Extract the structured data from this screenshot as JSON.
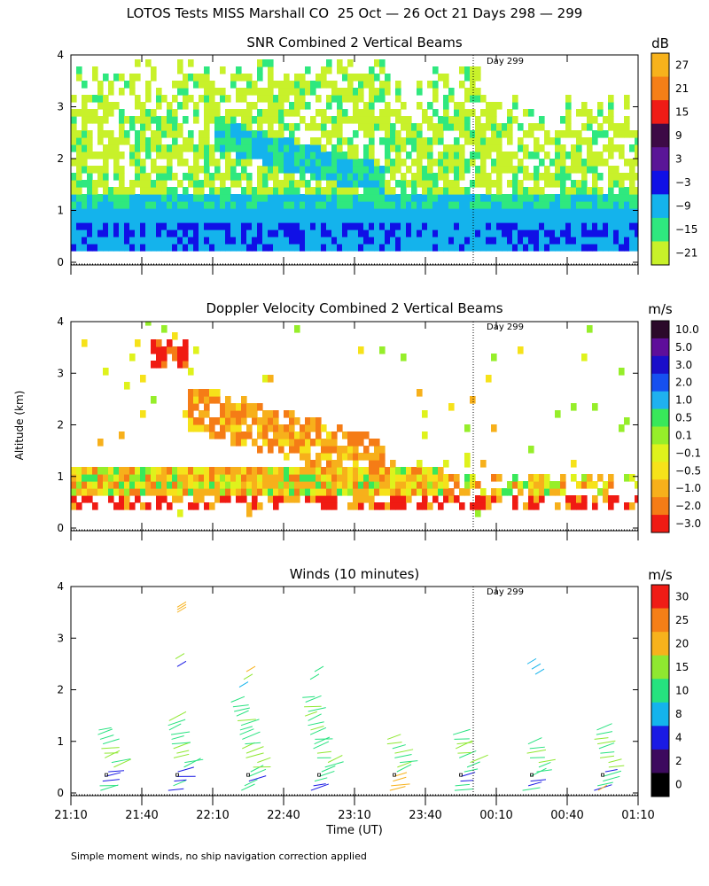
{
  "figure_title": "LOTOS Tests MISS Marshall CO  25 Oct — 26 Oct 21 Days 298 — 299",
  "y_axis_label": "Altitude (km)",
  "x_axis_label": "Time (UT)",
  "footnote": "Simple moment winds, no ship navigation correction applied",
  "day_marker": "Day 299",
  "chart_data": [
    {
      "type": "heatmap",
      "title": "SNR Combined 2 Vertical Beams",
      "colorbar_unit": "dB",
      "colorbar_ticks": [
        "27",
        "21",
        "15",
        "9",
        "3",
        "−3",
        "−9",
        "−15",
        "−21"
      ],
      "colorbar_colors": [
        "#f7b21c",
        "#f57f17",
        "#f01c16",
        "#3d0a46",
        "#5a1597",
        "#1010e6",
        "#14b3ec",
        "#2fe87f",
        "#c8f12a"
      ],
      "y_ticks": [
        "0",
        "1",
        "2",
        "3",
        "4"
      ],
      "ylim": [
        0,
        4
      ],
      "x_ticks": [
        "21:10",
        "21:40",
        "22:10",
        "22:40",
        "23:10",
        "23:40",
        "00:10",
        "00:40",
        "01:10"
      ]
    },
    {
      "type": "heatmap",
      "title": "Doppler Velocity Combined 2 Vertical Beams",
      "colorbar_unit": "m/s",
      "colorbar_ticks": [
        "10.0",
        "5.0",
        "3.0",
        "2.0",
        "1.0",
        "0.5",
        "0.1",
        "−0.1",
        "−0.5",
        "−1.0",
        "−2.0",
        "−3.0"
      ],
      "colorbar_colors": [
        "#2b0a2a",
        "#5e0e9a",
        "#1a0ec9",
        "#1650f0",
        "#1fb1ef",
        "#38e85a",
        "#96ee2a",
        "#dff21c",
        "#f6e21a",
        "#f7b01b",
        "#f57c16",
        "#f01b13"
      ],
      "y_ticks": [
        "0",
        "1",
        "2",
        "3",
        "4"
      ],
      "ylim": [
        0,
        4
      ],
      "x_ticks": [
        "21:10",
        "21:40",
        "22:10",
        "22:40",
        "23:10",
        "23:40",
        "00:10",
        "00:40",
        "01:10"
      ]
    },
    {
      "type": "scatter",
      "title": "Winds (10 minutes)",
      "colorbar_unit": "m/s",
      "colorbar_ticks": [
        "30",
        "25",
        "20",
        "15",
        "10",
        "8",
        "4",
        "2",
        "0"
      ],
      "colorbar_colors": [
        "#f01c16",
        "#f57f17",
        "#f7b21c",
        "#8fe830",
        "#26e27f",
        "#14b3ec",
        "#1a1ae4",
        "#3d0a5e",
        "#000000"
      ],
      "y_ticks": [
        "0",
        "1",
        "2",
        "3",
        "4"
      ],
      "ylim": [
        0,
        4
      ],
      "x_ticks": [
        "21:10",
        "21:40",
        "22:10",
        "22:40",
        "23:10",
        "23:40",
        "00:10",
        "00:40",
        "01:10"
      ]
    }
  ]
}
